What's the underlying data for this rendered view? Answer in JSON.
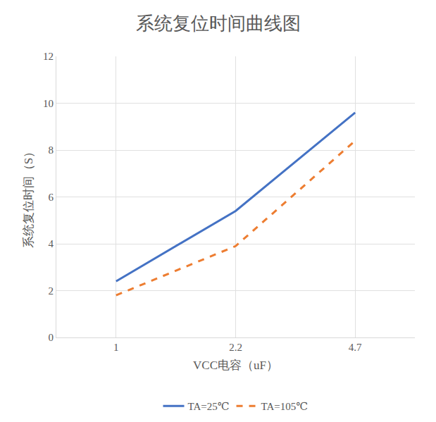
{
  "chart_data": {
    "type": "line",
    "title": "系统复位时间曲线图",
    "x_label": "VCC电容（uF）",
    "y_label": "系统复位时间（S）",
    "categories": [
      "1",
      "2.2",
      "4.7"
    ],
    "series": [
      {
        "name": "TA=25℃",
        "color": "#4472c4",
        "line_style": "solid",
        "values": [
          2.4,
          5.4,
          9.6
        ]
      },
      {
        "name": "TA=105℃",
        "color": "#ed7d31",
        "line_style": "dash",
        "values": [
          1.8,
          3.9,
          8.4
        ]
      }
    ],
    "ylim": [
      0,
      12
    ],
    "yticks": [
      0,
      2,
      4,
      6,
      8,
      10,
      12
    ],
    "grid": true,
    "legend": "bottom"
  }
}
